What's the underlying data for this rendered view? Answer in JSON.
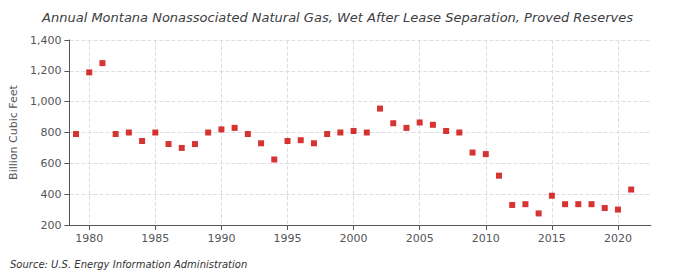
{
  "chart_data": {
    "type": "scatter",
    "title": "Annual Montana Nonassociated Natural Gas, Wet After Lease Separation, Proved Reserves",
    "ylabel": "Billion Cubic Feet",
    "annotations": [
      "Source: U.S. Energy Information Administration"
    ],
    "x": [
      1979,
      1980,
      1981,
      1982,
      1983,
      1984,
      1985,
      1986,
      1987,
      1988,
      1989,
      1990,
      1991,
      1992,
      1993,
      1994,
      1995,
      1996,
      1997,
      1998,
      1999,
      2000,
      2001,
      2002,
      2003,
      2004,
      2005,
      2006,
      2007,
      2008,
      2009,
      2010,
      2011,
      2012,
      2013,
      2014,
      2015,
      2016,
      2017,
      2018,
      2019,
      2020,
      2021
    ],
    "values": [
      790,
      1190,
      1250,
      790,
      800,
      745,
      800,
      725,
      700,
      725,
      800,
      820,
      830,
      790,
      730,
      625,
      745,
      750,
      730,
      790,
      800,
      810,
      800,
      955,
      860,
      830,
      865,
      850,
      810,
      800,
      670,
      660,
      520,
      330,
      335,
      275,
      390,
      335,
      335,
      335,
      310,
      300,
      430
    ],
    "color": "#cc0000",
    "marker": "square",
    "xlim": [
      1978.5,
      2022.5
    ],
    "xticks": [
      1980,
      1985,
      1990,
      1995,
      2000,
      2005,
      2010,
      2015,
      2020
    ],
    "ylim": [
      200,
      1400
    ],
    "yticks": [
      200,
      400,
      600,
      800,
      {
        "value": 1000,
        "label": "1,000"
      },
      {
        "value": 1200,
        "label": "1,200"
      },
      {
        "value": 1400,
        "label": "1,400"
      }
    ],
    "grid": true
  }
}
